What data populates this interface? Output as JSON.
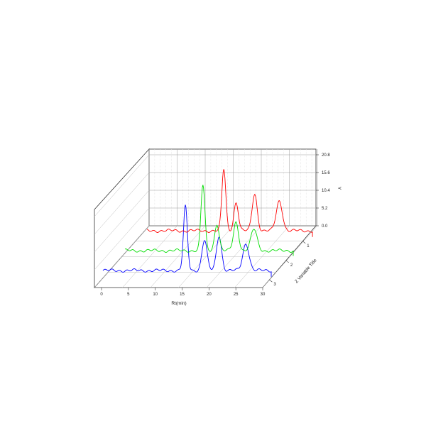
{
  "chart_data": {
    "type": "line",
    "subtype": "3d-waterfall",
    "title": "",
    "xlabel": "Rt(min)",
    "ylabel": "Y",
    "zlabel": "Z Variable Title",
    "xlim": [
      0,
      30
    ],
    "xticks": [
      "0",
      "5",
      "10",
      "15",
      "20",
      "25",
      "30"
    ],
    "ylim": [
      0.0,
      20.8
    ],
    "yticks": [
      "0.0",
      "5.2",
      "10.4",
      "15.6",
      "20.8"
    ],
    "zticks": [
      "1",
      "2",
      "3"
    ],
    "grid": true,
    "series": [
      {
        "depth": 1,
        "color": "#0000ff",
        "baseline": 3,
        "xrange": [
          0,
          30
        ],
        "peaks": [
          {
            "rt": 14.7,
            "y": 21.0,
            "width": 0.35
          },
          {
            "rt": 18.1,
            "y": 11.6,
            "width": 0.45
          },
          {
            "rt": 20.7,
            "y": 12.8,
            "width": 0.45
          },
          {
            "rt": 25.5,
            "y": 10.6,
            "width": 0.55
          }
        ]
      },
      {
        "depth": 2,
        "color": "#00dd00",
        "baseline": 3,
        "xrange": [
          0,
          30
        ],
        "peaks": [
          {
            "rt": 13.9,
            "y": 21.5,
            "width": 0.35
          },
          {
            "rt": 16.4,
            "y": 10.6,
            "width": 0.4
          },
          {
            "rt": 19.8,
            "y": 11.0,
            "width": 0.45
          },
          {
            "rt": 23.0,
            "y": 9.0,
            "width": 0.55
          }
        ]
      },
      {
        "depth": 3,
        "color": "#ff0000",
        "baseline": 3,
        "xrange": [
          0,
          29.5
        ],
        "peaks": [
          {
            "rt": 13.7,
            "y": 20.4,
            "width": 0.35
          },
          {
            "rt": 15.9,
            "y": 11.0,
            "width": 0.4
          },
          {
            "rt": 19.2,
            "y": 13.4,
            "width": 0.45
          },
          {
            "rt": 23.6,
            "y": 11.4,
            "width": 0.55
          }
        ]
      }
    ]
  }
}
